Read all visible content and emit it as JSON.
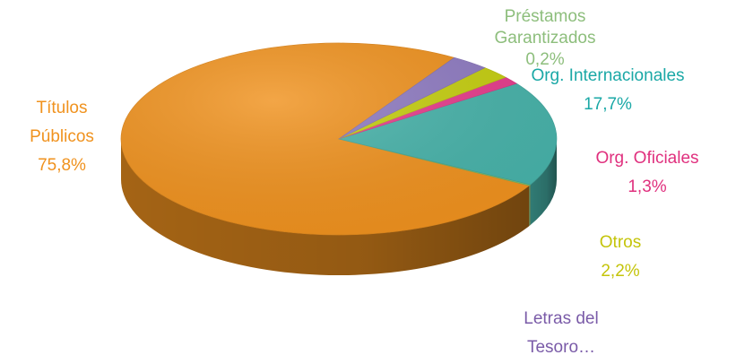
{
  "chart_data": {
    "type": "pie",
    "style": "3d",
    "slices": [
      {
        "label": "Títulos Públicos",
        "label_lines": [
          "Títulos",
          "Públicos"
        ],
        "value": 75.8,
        "value_label": "75,8%",
        "color": "#F0921E",
        "text_color": "#F0921E"
      },
      {
        "label": "Préstamos Garantizados",
        "label_lines": [
          "Préstamos",
          "Garantizados"
        ],
        "value": 0.2,
        "value_label": "0,2%",
        "color": "#7DBF6E",
        "text_color": "#8DBE7C"
      },
      {
        "label": "Org. Internacionales",
        "label_lines": [
          "Org. Internacionales"
        ],
        "value": 17.7,
        "value_label": "17,7%",
        "color": "#47B3AA",
        "text_color": "#1AA8A6"
      },
      {
        "label": "Org. Oficiales",
        "label_lines": [
          "Org. Oficiales"
        ],
        "value": 1.3,
        "value_label": "1,3%",
        "color": "#E83C8D",
        "text_color": "#E0307E"
      },
      {
        "label": "Otros",
        "label_lines": [
          "Otros"
        ],
        "value": 2.2,
        "value_label": "2,2%",
        "color": "#C6CF0F",
        "text_color": "#C4C40A"
      },
      {
        "label": "Letras del Tesoro…",
        "label_lines": [
          "Letras del",
          "Tesoro…"
        ],
        "value": 2.8,
        "value_label": "",
        "color": "#8F7BC2",
        "text_color": "#7A5BA8"
      }
    ],
    "legend": "none"
  }
}
